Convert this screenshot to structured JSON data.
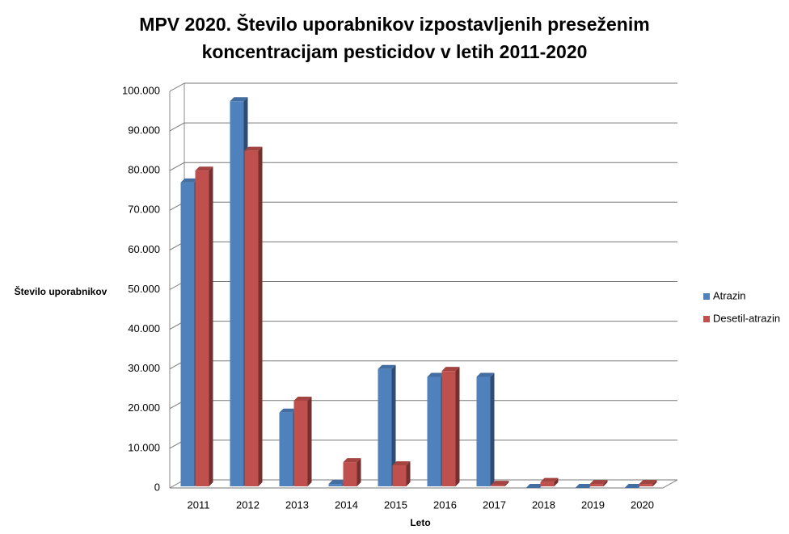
{
  "chart_data": {
    "type": "bar3d",
    "title": "MPV 2020. Število uporabnikov izpostavljenih preseženim koncentracijam pesticidov v letih 2011-2020",
    "x_label": "Leto",
    "y_label": "Število uporabnikov",
    "categories": [
      "2011",
      "2012",
      "2013",
      "2014",
      "2015",
      "2016",
      "2017",
      "2018",
      "2019",
      "2020"
    ],
    "series": [
      {
        "name": "Atrazin",
        "color": "#4f81bd",
        "values": [
          77000,
          97500,
          19000,
          1000,
          30000,
          28000,
          28000,
          0,
          0,
          0
        ]
      },
      {
        "name": "Desetil-atrazin",
        "color": "#c0504d",
        "values": [
          80000,
          85000,
          22000,
          6500,
          5700,
          29500,
          800,
          1500,
          1000,
          1000
        ]
      }
    ],
    "ylim": [
      0,
      100000
    ],
    "yticks": [
      0,
      {
        "value": 10000,
        "label": "10.000"
      },
      {
        "value": 20000,
        "label": "20.000"
      },
      {
        "value": 30000,
        "label": "30.000"
      },
      {
        "value": 40000,
        "label": "40.000"
      },
      {
        "value": 50000,
        "label": "50.000"
      },
      {
        "value": 60000,
        "label": "60.000"
      },
      {
        "value": 70000,
        "label": "70.000"
      },
      {
        "value": 80000,
        "label": "80.000"
      },
      {
        "value": 90000,
        "label": "90.000"
      },
      {
        "value": 100000,
        "label": "100.000"
      }
    ],
    "grid": true,
    "legend": "right"
  }
}
